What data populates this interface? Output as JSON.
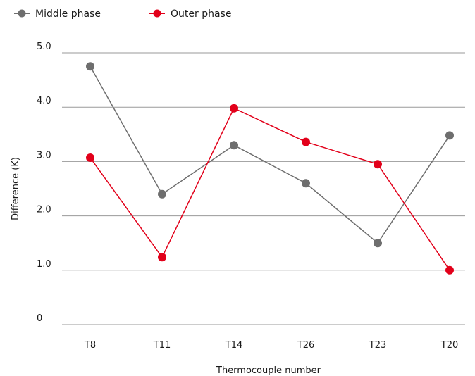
{
  "chart_data": {
    "type": "line",
    "title": "",
    "xlabel": "Thermocouple number",
    "ylabel": "Difference (K)",
    "categories": [
      "T8",
      "T11",
      "T14",
      "T26",
      "T23",
      "T20"
    ],
    "ylim": [
      0,
      5
    ],
    "yticks": [
      {
        "value": 0,
        "label": "0"
      },
      {
        "value": 1,
        "label": "1.0"
      },
      {
        "value": 2,
        "label": "2.0"
      },
      {
        "value": 3,
        "label": "3.0"
      },
      {
        "value": 4,
        "label": "4.0"
      },
      {
        "value": 5,
        "label": "5.0"
      }
    ],
    "grid": "horizontal",
    "legend_position": "top-left",
    "series": [
      {
        "name": "Middle phase",
        "color": "#6e6e6e",
        "values": [
          4.75,
          2.4,
          3.3,
          2.6,
          1.5,
          3.48
        ]
      },
      {
        "name": "Outer phase",
        "color": "#e2001a",
        "values": [
          3.07,
          1.24,
          3.98,
          3.36,
          2.95,
          1.0
        ]
      }
    ]
  }
}
